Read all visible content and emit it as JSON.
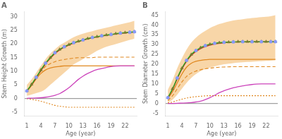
{
  "chart_data": [
    {
      "type": "line",
      "title": "A",
      "xlabel": "Age (year)",
      "ylabel": "Stem Height Growth (m)",
      "xlim": [
        0.5,
        24.5
      ],
      "xticks": [
        1,
        4,
        7,
        10,
        13,
        16,
        19,
        22
      ],
      "ylim": [
        -6.5,
        32
      ],
      "yticks": [
        -5,
        0,
        5,
        10,
        15,
        20,
        25,
        30
      ],
      "grid": false,
      "series": [
        {
          "type": "band",
          "color": "#f5c07a",
          "x": [
            1,
            2,
            3,
            4,
            5,
            6,
            7,
            8,
            9,
            10,
            11,
            12,
            13,
            14,
            15,
            16,
            17,
            18,
            19,
            20,
            21,
            22,
            23,
            24
          ],
          "lower": [
            1.0,
            1.5,
            2.0,
            2.5,
            3.5,
            5.0,
            6.5,
            8.0,
            9.5,
            11.0,
            12.5,
            13.5,
            14.5,
            15.5,
            16.5,
            17.5,
            18.3,
            19.0,
            19.5,
            20.0,
            20.5,
            21.0,
            21.5,
            22.0
          ],
          "upper": [
            5.0,
            7.0,
            9.5,
            12.0,
            14.5,
            16.5,
            18.0,
            19.5,
            20.5,
            21.5,
            22.5,
            23.2,
            23.8,
            24.3,
            24.7,
            25.2,
            25.6,
            26.0,
            26.4,
            26.8,
            27.2,
            27.6,
            28.0,
            28.5
          ]
        },
        {
          "type": "hline",
          "color": "#888888",
          "values": [
            0
          ]
        },
        {
          "type": "line",
          "color": "#e08820",
          "line_style": "dotted",
          "x": [
            1,
            2,
            3,
            4,
            5,
            6,
            7,
            8,
            9,
            10,
            11,
            12,
            13,
            14,
            15,
            16,
            17,
            18,
            19,
            20,
            21,
            22,
            23,
            24
          ],
          "values": [
            0.0,
            -0.3,
            -0.6,
            -1.0,
            -1.5,
            -2.0,
            -2.5,
            -2.8,
            -3.0,
            -3.2,
            -3.2,
            -3.2,
            -3.2,
            -3.2,
            -3.2,
            -3.2,
            -3.2,
            -3.2,
            -3.2,
            -3.2,
            -3.2,
            -3.2,
            -3.2,
            -3.2
          ]
        },
        {
          "type": "line",
          "color": "#e08820",
          "line_style": "dashed",
          "x": [
            1,
            2,
            3,
            4,
            5,
            6,
            7,
            8,
            9,
            10,
            11,
            12,
            13,
            14,
            15,
            16,
            17,
            18,
            19,
            20,
            21,
            22,
            23,
            24
          ],
          "values": [
            2.8,
            5.2,
            7.8,
            10.0,
            11.8,
            12.8,
            13.5,
            14.0,
            14.3,
            14.6,
            14.8,
            15.0,
            15.0,
            15.0,
            15.0,
            15.2,
            15.2,
            15.2,
            15.2,
            15.2,
            15.2,
            15.2,
            15.2,
            15.2
          ]
        },
        {
          "type": "line",
          "color": "#e08820",
          "line_style": "solid",
          "x": [
            1,
            2,
            3,
            4,
            5,
            6,
            7,
            8,
            9,
            10,
            11,
            12,
            13,
            14,
            15,
            16,
            17,
            18,
            19,
            20,
            21,
            22,
            23,
            24
          ],
          "values": [
            2.5,
            4.8,
            7.2,
            9.2,
            10.5,
            11.2,
            11.6,
            11.8,
            12.0,
            12.0,
            12.0,
            12.0,
            12.0,
            12.0,
            12.0,
            12.0,
            12.0,
            12.0,
            12.0,
            12.0,
            12.0,
            12.0,
            12.0,
            12.0
          ]
        },
        {
          "type": "line",
          "color": "#cc44bb",
          "line_style": "solid",
          "x": [
            1,
            2,
            3,
            4,
            5,
            6,
            7,
            8,
            9,
            10,
            11,
            12,
            13,
            14,
            15,
            16,
            17,
            18,
            19,
            20,
            21,
            22,
            23,
            24
          ],
          "values": [
            0.1,
            0.15,
            0.2,
            0.3,
            0.5,
            0.8,
            1.2,
            1.8,
            2.8,
            4.0,
            5.5,
            7.0,
            8.2,
            9.2,
            10.0,
            10.6,
            11.0,
            11.4,
            11.7,
            11.9,
            12.0,
            12.0,
            12.0,
            12.0
          ]
        },
        {
          "type": "line",
          "color": "#cc2222",
          "line_style": "solid",
          "x": [
            1,
            2,
            3,
            4,
            5,
            6,
            7,
            8,
            9,
            10,
            11,
            12,
            13,
            14,
            15,
            16,
            17,
            18,
            19,
            20,
            21,
            22,
            23,
            24
          ],
          "values": [
            2.8,
            5.0,
            7.5,
            10.2,
            12.7,
            14.7,
            16.5,
            17.8,
            18.8,
            19.6,
            20.3,
            20.9,
            21.4,
            21.9,
            22.3,
            22.6,
            22.9,
            23.2,
            23.4,
            23.7,
            23.9,
            24.1,
            24.2,
            24.4
          ]
        },
        {
          "type": "line",
          "color": "#22aa22",
          "line_style": "solid",
          "x": [
            1,
            2,
            3,
            4,
            5,
            6,
            7,
            8,
            9,
            10,
            11,
            12,
            13,
            14,
            15,
            16,
            17,
            18,
            19,
            20,
            21,
            22,
            23,
            24
          ],
          "values": [
            2.8,
            5.2,
            7.8,
            10.5,
            13.0,
            15.0,
            16.8,
            18.0,
            19.0,
            19.8,
            20.5,
            21.0,
            21.5,
            22.0,
            22.4,
            22.7,
            23.0,
            23.3,
            23.5,
            23.8,
            24.0,
            24.2,
            24.3,
            24.5
          ]
        },
        {
          "type": "scatter",
          "color": "#7a7a30",
          "marker": "triangle",
          "x": [
            1,
            2,
            3,
            4,
            5,
            6,
            7,
            8,
            9,
            10,
            11,
            12,
            13,
            14,
            15,
            16,
            17,
            18,
            19,
            20,
            21,
            22,
            23,
            24
          ],
          "values": [
            2.8,
            5.2,
            7.8,
            10.5,
            13.0,
            15.0,
            16.8,
            18.0,
            19.0,
            19.8,
            20.5,
            21.0,
            21.5,
            22.0,
            22.4,
            22.7,
            23.0,
            23.3,
            23.5,
            23.8,
            24.0,
            24.2,
            24.3,
            24.5
          ]
        },
        {
          "type": "scatter",
          "color": "#8899ff",
          "marker": "circle",
          "x": [
            1,
            3,
            5,
            7,
            9,
            11,
            13,
            15,
            17,
            19,
            21,
            23,
            24
          ],
          "values": [
            2.8,
            7.8,
            13.0,
            16.8,
            19.0,
            20.5,
            21.5,
            22.4,
            23.0,
            23.5,
            24.0,
            24.3,
            24.5
          ]
        }
      ]
    },
    {
      "type": "line",
      "title": "B",
      "xlabel": "Age (year)",
      "ylabel": "Stem Diameter Growth (cm)",
      "xlim": [
        0.5,
        24.5
      ],
      "xticks": [
        1,
        4,
        7,
        10,
        13,
        16,
        19,
        22
      ],
      "ylim": [
        -6.5,
        47
      ],
      "yticks": [
        -5,
        0,
        5,
        10,
        15,
        20,
        25,
        30,
        35,
        40,
        45
      ],
      "grid": false,
      "series": [
        {
          "type": "band",
          "color": "#f5c07a",
          "x": [
            1,
            2,
            3,
            4,
            5,
            6,
            7,
            8,
            9,
            10,
            11,
            12,
            13,
            14,
            15,
            16,
            17,
            18,
            19,
            20,
            21,
            22,
            23,
            24
          ],
          "lower": [
            0.5,
            2.0,
            4.5,
            7.5,
            10.5,
            13.0,
            15.0,
            16.5,
            17.5,
            18.3,
            19.0,
            19.5,
            20.0,
            20.3,
            20.6,
            20.8,
            21.0,
            21.2,
            21.3,
            21.5,
            21.6,
            21.7,
            21.8,
            22.0
          ],
          "upper": [
            7.0,
            12.0,
            18.0,
            23.0,
            27.5,
            31.0,
            33.5,
            35.5,
            37.0,
            38.5,
            39.5,
            40.5,
            41.2,
            41.8,
            42.3,
            42.7,
            43.0,
            43.3,
            43.6,
            43.8,
            44.0,
            44.2,
            44.5,
            45.0
          ]
        },
        {
          "type": "hline",
          "color": "#888888",
          "values": [
            0
          ]
        },
        {
          "type": "line",
          "color": "#e08820",
          "line_style": "dotted",
          "x": [
            1,
            2,
            3,
            4,
            5,
            6,
            7,
            8,
            9,
            10,
            11,
            12,
            13,
            14,
            15,
            16,
            17,
            18,
            19,
            20,
            21,
            22,
            23,
            24
          ],
          "values": [
            0.3,
            0.8,
            1.5,
            2.2,
            2.8,
            3.2,
            3.5,
            3.7,
            3.9,
            4.0,
            4.0,
            4.0,
            4.0,
            4.0,
            4.0,
            4.0,
            4.0,
            4.0,
            4.0,
            4.0,
            4.0,
            4.0,
            4.0,
            4.0
          ]
        },
        {
          "type": "line",
          "color": "#e08820",
          "line_style": "dashed",
          "x": [
            1,
            2,
            3,
            4,
            5,
            6,
            7,
            8,
            9,
            10,
            11,
            12,
            13,
            14,
            15,
            16,
            17,
            18,
            19,
            20,
            21,
            22,
            23,
            24
          ],
          "values": [
            1.5,
            4.0,
            7.5,
            11.0,
            13.8,
            15.5,
            16.5,
            17.2,
            17.7,
            18.0,
            18.3,
            18.5,
            18.6,
            18.7,
            18.8,
            18.8,
            18.8,
            18.8,
            18.8,
            18.8,
            18.8,
            18.8,
            18.8,
            18.8
          ]
        },
        {
          "type": "line",
          "color": "#e08820",
          "line_style": "solid",
          "x": [
            1,
            2,
            3,
            4,
            5,
            6,
            7,
            8,
            9,
            10,
            11,
            12,
            13,
            14,
            15,
            16,
            17,
            18,
            19,
            20,
            21,
            22,
            23,
            24
          ],
          "values": [
            2.5,
            6.0,
            10.5,
            15.0,
            18.5,
            20.5,
            21.5,
            22.0,
            22.3,
            22.5,
            22.5,
            22.5,
            22.5,
            22.5,
            22.5,
            22.5,
            22.5,
            22.5,
            22.5,
            22.5,
            22.5,
            22.5,
            22.5,
            22.5
          ]
        },
        {
          "type": "line",
          "color": "#cc44bb",
          "line_style": "solid",
          "x": [
            1,
            2,
            3,
            4,
            5,
            6,
            7,
            8,
            9,
            10,
            11,
            12,
            13,
            14,
            15,
            16,
            17,
            18,
            19,
            20,
            21,
            22,
            23,
            24
          ],
          "values": [
            0.0,
            0.05,
            0.1,
            0.2,
            0.3,
            0.5,
            0.8,
            1.2,
            2.0,
            3.0,
            4.2,
            5.5,
            6.5,
            7.3,
            8.0,
            8.6,
            9.0,
            9.4,
            9.7,
            9.9,
            10.0,
            10.0,
            10.0,
            10.0
          ]
        },
        {
          "type": "line",
          "color": "#cc2222",
          "line_style": "solid",
          "x": [
            1,
            2,
            3,
            4,
            5,
            6,
            7,
            8,
            9,
            10,
            11,
            12,
            13,
            14,
            15,
            16,
            17,
            18,
            19,
            20,
            21,
            22,
            23,
            24
          ],
          "values": [
            2.8,
            7.2,
            12.5,
            17.5,
            21.5,
            24.5,
            26.5,
            28.0,
            29.0,
            29.8,
            30.3,
            30.7,
            31.0,
            31.2,
            31.3,
            31.4,
            31.4,
            31.4,
            31.5,
            31.5,
            31.5,
            31.5,
            31.5,
            31.5
          ]
        },
        {
          "type": "line",
          "color": "#22aa22",
          "line_style": "solid",
          "x": [
            1,
            2,
            3,
            4,
            5,
            6,
            7,
            8,
            9,
            10,
            11,
            12,
            13,
            14,
            15,
            16,
            17,
            18,
            19,
            20,
            21,
            22,
            23,
            24
          ],
          "values": [
            3.0,
            7.5,
            13.0,
            18.0,
            22.0,
            25.0,
            27.0,
            28.5,
            29.5,
            30.2,
            30.7,
            31.0,
            31.2,
            31.3,
            31.4,
            31.5,
            31.5,
            31.5,
            31.5,
            31.5,
            31.5,
            31.5,
            31.5,
            31.5
          ]
        },
        {
          "type": "scatter",
          "color": "#7a7a30",
          "marker": "triangle",
          "x": [
            1,
            2,
            3,
            4,
            5,
            6,
            7,
            8,
            9,
            10,
            11,
            12,
            13,
            14,
            15,
            16,
            17,
            18,
            19,
            20,
            21,
            22,
            23,
            24
          ],
          "values": [
            3.0,
            7.5,
            13.0,
            18.0,
            22.0,
            25.0,
            27.0,
            28.5,
            29.5,
            30.2,
            30.7,
            31.0,
            31.2,
            31.3,
            31.4,
            31.5,
            31.5,
            31.5,
            31.5,
            31.5,
            31.5,
            31.5,
            31.5,
            31.5
          ]
        },
        {
          "type": "scatter",
          "color": "#8899ff",
          "marker": "circle",
          "x": [
            1,
            3,
            5,
            7,
            9,
            11,
            13,
            15,
            17,
            19,
            21,
            23,
            24
          ],
          "values": [
            3.0,
            13.0,
            22.0,
            27.0,
            29.5,
            30.7,
            31.2,
            31.4,
            31.5,
            31.5,
            31.5,
            31.5,
            31.5
          ]
        }
      ]
    }
  ]
}
